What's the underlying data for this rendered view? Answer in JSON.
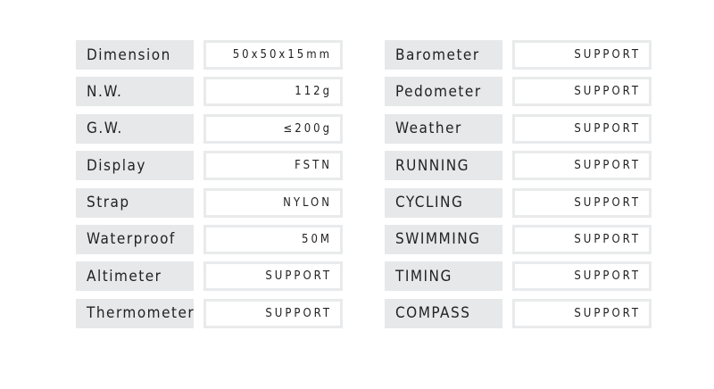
{
  "left": [
    {
      "label": "Dimension",
      "value": "50x50x15mm"
    },
    {
      "label": "N.W.",
      "value": "112g"
    },
    {
      "label": "G.W.",
      "value": "≤200g"
    },
    {
      "label": "Display",
      "value": "FSTN"
    },
    {
      "label": "Strap",
      "value": "NYLON"
    },
    {
      "label": "Waterproof",
      "value": "50M"
    },
    {
      "label": "Altimeter",
      "value": "SUPPORT"
    },
    {
      "label": "Thermometer",
      "value": "SUPPORT"
    }
  ],
  "right": [
    {
      "label": "Barometer",
      "value": "SUPPORT"
    },
    {
      "label": "Pedometer",
      "value": "SUPPORT"
    },
    {
      "label": "Weather",
      "value": "SUPPORT"
    },
    {
      "label": "RUNNING",
      "value": "SUPPORT"
    },
    {
      "label": "CYCLING",
      "value": "SUPPORT"
    },
    {
      "label": "SWIMMING",
      "value": "SUPPORT"
    },
    {
      "label": "TIMING",
      "value": "SUPPORT"
    },
    {
      "label": "COMPASS",
      "value": "SUPPORT"
    }
  ]
}
